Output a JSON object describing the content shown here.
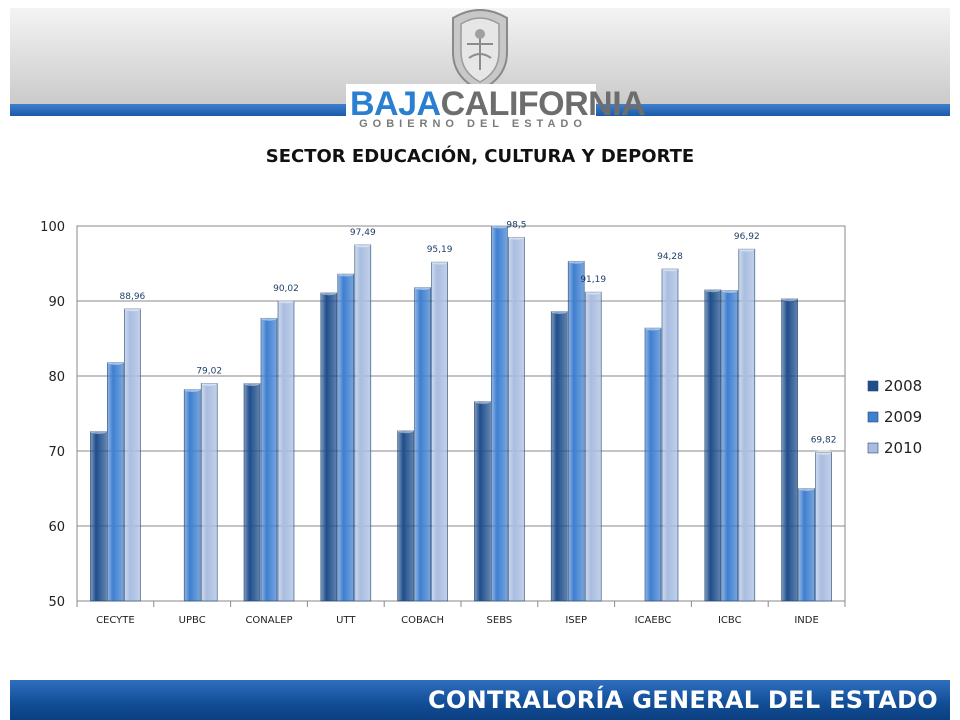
{
  "header": {
    "logo_word_1": "BAJA",
    "logo_word_2": "CALIFORNIA",
    "logo_subtitle": "GOBIERNO DEL ESTADO",
    "brand_blue": "#1c5aa8"
  },
  "footer": {
    "text": "CONTRALORÍA GENERAL DEL ESTADO"
  },
  "chart_data": {
    "type": "bar",
    "title": "SECTOR EDUCACIÓN, CULTURA Y DEPORTE",
    "categories": [
      "CECYTE",
      "UPBC",
      "CONALEP",
      "UTT",
      "COBACH",
      "SEBS",
      "ISEP",
      "ICAEBC",
      "ICBC",
      "INDE"
    ],
    "series": [
      {
        "name": "2008",
        "color": "#1f4e8c",
        "values": [
          72.6,
          null,
          79.0,
          91.1,
          72.7,
          76.6,
          88.6,
          null,
          91.5,
          90.3
        ]
      },
      {
        "name": "2009",
        "color": "#3f7fd0",
        "values": [
          81.8,
          78.2,
          87.7,
          93.6,
          91.8,
          100.0,
          95.3,
          86.4,
          91.4,
          65.0
        ]
      },
      {
        "name": "2010",
        "color": "#a9bde0",
        "values": [
          88.96,
          79.02,
          90.02,
          97.49,
          95.19,
          98.5,
          91.19,
          94.28,
          96.92,
          69.82
        ],
        "labels": [
          "88,96",
          "79,02",
          "90,02",
          "97,49",
          "95,19",
          "98,5",
          "91,19",
          "94,28",
          "96,92",
          "69,82"
        ]
      }
    ],
    "ylim": [
      50,
      100
    ],
    "yticks": [
      50,
      60,
      70,
      80,
      90,
      100
    ],
    "grid": true,
    "legend": "right"
  }
}
